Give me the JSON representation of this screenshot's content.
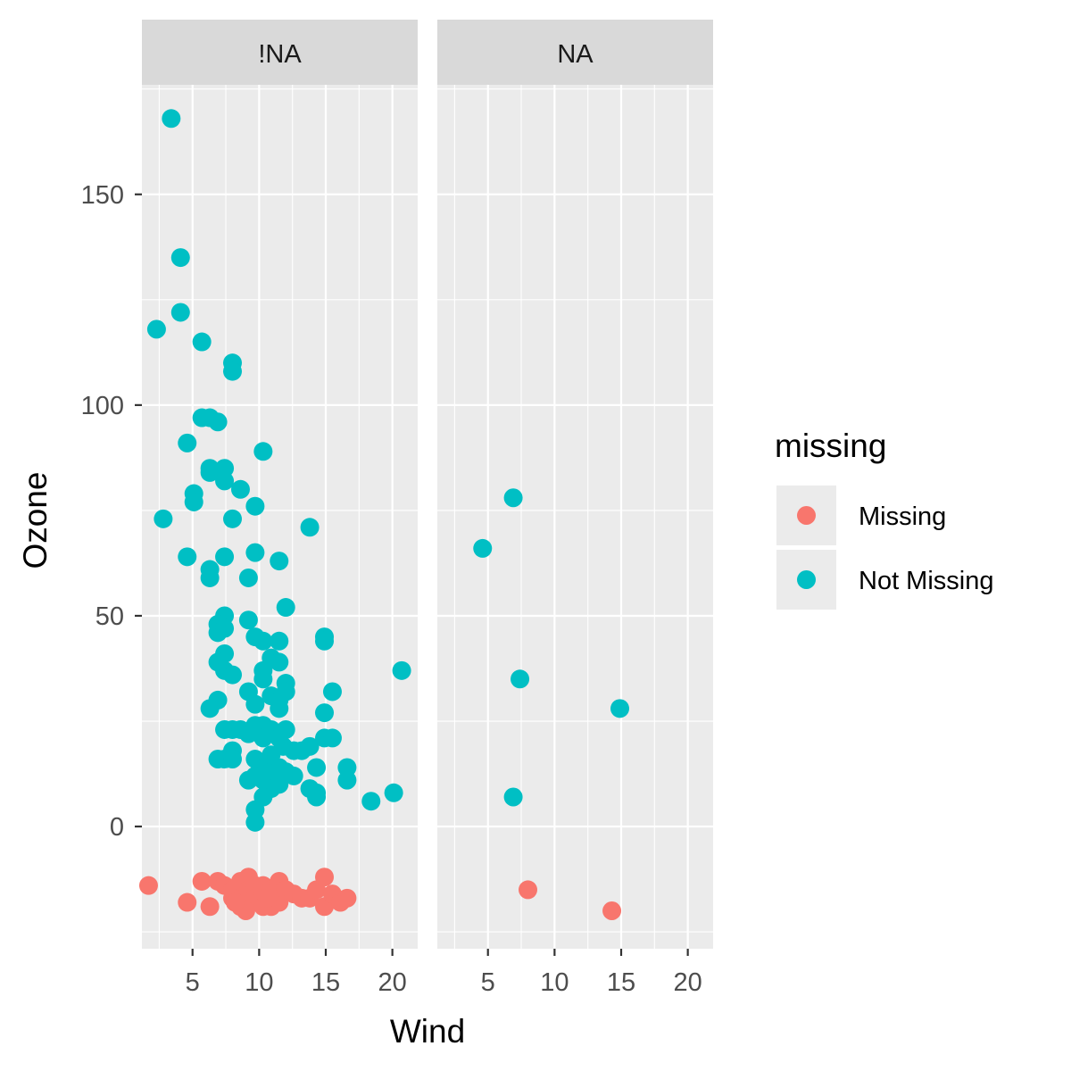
{
  "chart_data": {
    "type": "scatter",
    "xlabel": "Wind",
    "ylabel": "Ozone",
    "xlim": [
      1.2,
      21.9
    ],
    "ylim": [
      -29,
      176
    ],
    "x_ticks": [
      5,
      10,
      15,
      20
    ],
    "y_ticks": [
      0,
      50,
      100,
      150
    ],
    "facets": [
      "!NA",
      "NA"
    ],
    "legend": {
      "title": "missing",
      "position": "right",
      "entries": [
        {
          "label": "Missing",
          "color": "#F8766D"
        },
        {
          "label": "Not Missing",
          "color": "#00BFC4"
        }
      ]
    },
    "series": [
      {
        "name": "Missing",
        "color": "#F8766D",
        "points_by_facet": {
          "!NA": [
            [
              1.7,
              -14
            ],
            [
              4.6,
              -18
            ],
            [
              5.7,
              -13
            ],
            [
              6.3,
              -19
            ],
            [
              6.9,
              -13
            ],
            [
              7.4,
              -14
            ],
            [
              8.0,
              -17
            ],
            [
              8.0,
              -15
            ],
            [
              8.6,
              -13
            ],
            [
              8.6,
              -19
            ],
            [
              9.2,
              -12
            ],
            [
              9.2,
              -15
            ],
            [
              9.2,
              -18
            ],
            [
              9.7,
              -14
            ],
            [
              9.7,
              -17
            ],
            [
              10.3,
              -14
            ],
            [
              10.3,
              -16
            ],
            [
              10.3,
              -19
            ],
            [
              10.9,
              -15
            ],
            [
              10.9,
              -19
            ],
            [
              11.5,
              -13
            ],
            [
              11.5,
              -16
            ],
            [
              11.5,
              -18
            ],
            [
              12.0,
              -15
            ],
            [
              12.6,
              -16
            ],
            [
              13.2,
              -17
            ],
            [
              13.8,
              -17
            ],
            [
              14.3,
              -15
            ],
            [
              14.9,
              -12
            ],
            [
              14.9,
              -19
            ],
            [
              15.5,
              -16
            ],
            [
              16.1,
              -18
            ],
            [
              16.6,
              -17
            ],
            [
              9.0,
              -20
            ],
            [
              8.2,
              -18
            ],
            [
              10.6,
              -17
            ]
          ],
          "NA": [
            [
              8.0,
              -15
            ],
            [
              14.3,
              -20
            ]
          ]
        }
      },
      {
        "name": "Not Missing",
        "color": "#00BFC4",
        "points_by_facet": {
          "!NA": [
            [
              3.4,
              168
            ],
            [
              4.1,
              135
            ],
            [
              4.1,
              122
            ],
            [
              2.3,
              118
            ],
            [
              5.7,
              115
            ],
            [
              8.0,
              110
            ],
            [
              8.0,
              108
            ],
            [
              5.7,
              97
            ],
            [
              6.3,
              97
            ],
            [
              6.9,
              96
            ],
            [
              4.6,
              91
            ],
            [
              10.3,
              89
            ],
            [
              6.3,
              85
            ],
            [
              7.4,
              85
            ],
            [
              6.3,
              84
            ],
            [
              7.4,
              82
            ],
            [
              8.6,
              80
            ],
            [
              5.1,
              79
            ],
            [
              5.1,
              77
            ],
            [
              9.7,
              76
            ],
            [
              2.8,
              73
            ],
            [
              8.0,
              73
            ],
            [
              13.8,
              71
            ],
            [
              4.6,
              64
            ],
            [
              7.4,
              64
            ],
            [
              9.7,
              65
            ],
            [
              11.5,
              63
            ],
            [
              6.3,
              61
            ],
            [
              6.3,
              59
            ],
            [
              9.2,
              59
            ],
            [
              12.0,
              52
            ],
            [
              7.4,
              50
            ],
            [
              6.9,
              48
            ],
            [
              6.9,
              46
            ],
            [
              7.4,
              47
            ],
            [
              9.2,
              49
            ],
            [
              9.7,
              45
            ],
            [
              10.3,
              44
            ],
            [
              11.5,
              44
            ],
            [
              14.9,
              45
            ],
            [
              14.9,
              44
            ],
            [
              7.4,
              41
            ],
            [
              6.9,
              39
            ],
            [
              7.4,
              37
            ],
            [
              8.0,
              36
            ],
            [
              10.9,
              40
            ],
            [
              11.5,
              39
            ],
            [
              10.3,
              37
            ],
            [
              10.3,
              35
            ],
            [
              12.0,
              34
            ],
            [
              12.0,
              32
            ],
            [
              9.2,
              32
            ],
            [
              10.9,
              31
            ],
            [
              11.5,
              30
            ],
            [
              9.7,
              29
            ],
            [
              11.5,
              28
            ],
            [
              15.5,
              32
            ],
            [
              14.9,
              27
            ],
            [
              6.9,
              30
            ],
            [
              6.3,
              28
            ],
            [
              7.4,
              23
            ],
            [
              8.0,
              23
            ],
            [
              8.6,
              23
            ],
            [
              9.2,
              22
            ],
            [
              9.7,
              24
            ],
            [
              10.3,
              24
            ],
            [
              10.3,
              21
            ],
            [
              10.9,
              23
            ],
            [
              11.5,
              21
            ],
            [
              12.0,
              23
            ],
            [
              12.6,
              18
            ],
            [
              13.2,
              18
            ],
            [
              13.8,
              19
            ],
            [
              14.9,
              21
            ],
            [
              15.5,
              21
            ],
            [
              6.9,
              16
            ],
            [
              7.4,
              16
            ],
            [
              8.0,
              18
            ],
            [
              8.0,
              16
            ],
            [
              9.7,
              16
            ],
            [
              10.3,
              14
            ],
            [
              10.9,
              13
            ],
            [
              11.5,
              14
            ],
            [
              12.0,
              13
            ],
            [
              12.6,
              12
            ],
            [
              14.3,
              14
            ],
            [
              16.6,
              14
            ],
            [
              16.6,
              11
            ],
            [
              9.2,
              11
            ],
            [
              9.7,
              12
            ],
            [
              10.3,
              11
            ],
            [
              10.9,
              9
            ],
            [
              11.5,
              10
            ],
            [
              13.8,
              9
            ],
            [
              14.3,
              8
            ],
            [
              14.3,
              7
            ],
            [
              10.3,
              7
            ],
            [
              9.7,
              4
            ],
            [
              9.7,
              1
            ],
            [
              18.4,
              6
            ],
            [
              20.1,
              8
            ],
            [
              20.7,
              37
            ],
            [
              10.9,
              17
            ],
            [
              11.8,
              19
            ]
          ],
          "NA": [
            [
              6.9,
              78
            ],
            [
              4.6,
              66
            ],
            [
              7.4,
              35
            ],
            [
              14.9,
              28
            ],
            [
              6.9,
              7
            ]
          ]
        }
      }
    ]
  }
}
